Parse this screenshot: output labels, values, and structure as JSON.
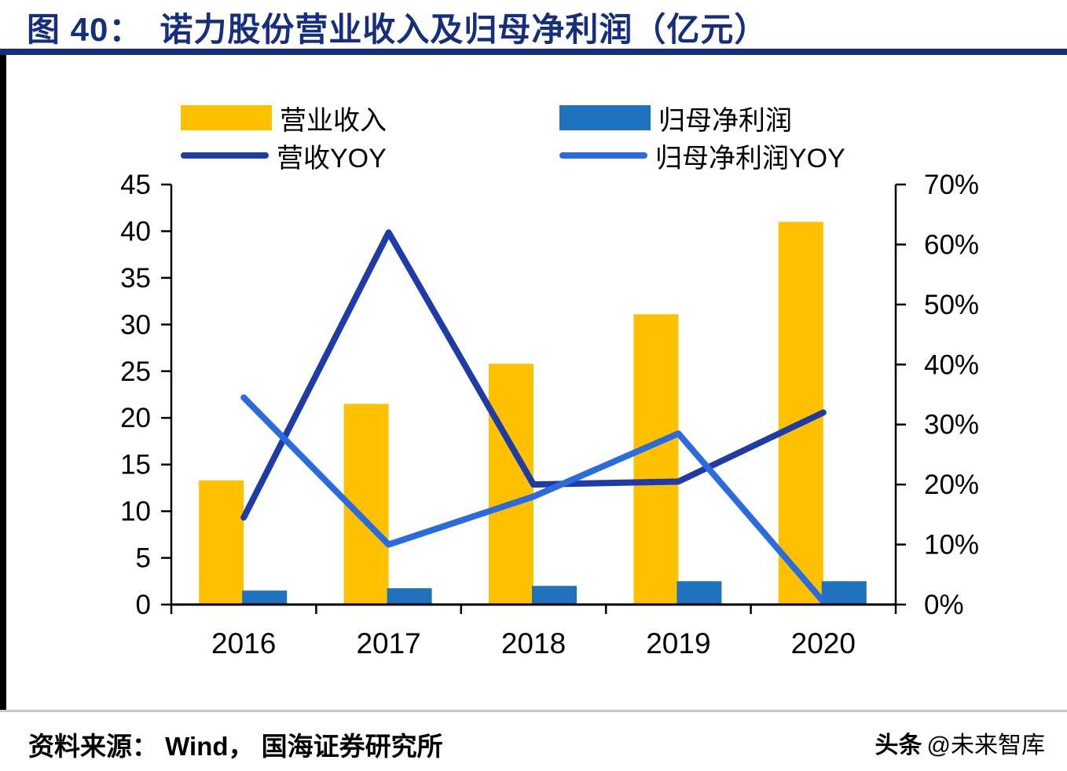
{
  "header": {
    "figure_label": "图 40：",
    "title": "诺力股份营业收入及归母净利润（亿元）"
  },
  "footer": {
    "source": "资料来源： Wind， 国海证券研究所",
    "watermark_bold": "头条",
    "watermark_rest": "@未来智库"
  },
  "colors": {
    "title_navy": "#152E7E",
    "revenue_bar": "#FFC000",
    "profit_bar": "#1F72BE",
    "revenue_yoy_line": "#1F3BA8",
    "profit_yoy_line": "#2B6BE0",
    "axis_black": "#000000",
    "divider_gray": "#C9C9C9"
  },
  "chart_data": {
    "type": "combo-bar-line",
    "title": "诺力股份营业收入及归母净利润（亿元）",
    "categories": [
      "2016",
      "2017",
      "2018",
      "2019",
      "2020"
    ],
    "series": [
      {
        "name": "营业收入",
        "kind": "bar",
        "axis": "left",
        "color": "#FFC000",
        "values": [
          13.3,
          21.5,
          25.8,
          31.1,
          41.0
        ]
      },
      {
        "name": "归母净利润",
        "kind": "bar",
        "axis": "left",
        "color": "#1F72BE",
        "values": [
          1.5,
          1.75,
          2.0,
          2.5,
          2.5
        ]
      },
      {
        "name": "营收YOY",
        "kind": "line",
        "axis": "right",
        "color": "#1F3BA8",
        "values": [
          14.5,
          62.0,
          20.0,
          20.5,
          32.0
        ]
      },
      {
        "name": "归母净利润YOY",
        "kind": "line",
        "axis": "right",
        "color": "#2B6BE0",
        "values": [
          34.5,
          10.0,
          18.0,
          28.5,
          0.5
        ]
      }
    ],
    "left_axis": {
      "min": 0,
      "max": 45,
      "ticks": [
        45,
        40,
        35,
        30,
        25,
        20,
        15,
        10,
        5,
        0
      ]
    },
    "right_axis": {
      "min": 0,
      "max": 70,
      "ticks": [
        70,
        60,
        50,
        40,
        30,
        20,
        10,
        0
      ],
      "unit": "%"
    },
    "legend_position": "top",
    "grid": false
  }
}
